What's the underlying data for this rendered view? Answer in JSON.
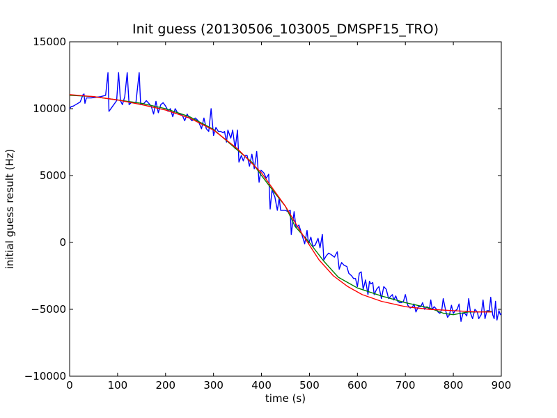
{
  "chart_data": {
    "type": "line",
    "title": "Init guess (20130506_103005_DMSPF15_TRO)",
    "xlabel": "time (s)",
    "ylabel": "initial guess result (Hz)",
    "xlim": [
      0,
      900
    ],
    "ylim": [
      -10000,
      15000
    ],
    "xticks": [
      0,
      100,
      200,
      300,
      400,
      500,
      600,
      700,
      800,
      900
    ],
    "yticks": [
      -10000,
      -5000,
      0,
      5000,
      10000,
      15000
    ],
    "grid": false,
    "series": [
      {
        "color": "#0000ff",
        "points": [
          [
            0,
            10000
          ],
          [
            3,
            10150
          ],
          [
            8,
            10200
          ],
          [
            15,
            10350
          ],
          [
            22,
            10500
          ],
          [
            28,
            11050
          ],
          [
            30,
            11100
          ],
          [
            32,
            10400
          ],
          [
            35,
            10800
          ],
          [
            45,
            10800
          ],
          [
            55,
            10850
          ],
          [
            65,
            10900
          ],
          [
            75,
            11000
          ],
          [
            80,
            12700
          ],
          [
            82,
            9800
          ],
          [
            90,
            10200
          ],
          [
            98,
            10600
          ],
          [
            102,
            12700
          ],
          [
            106,
            10600
          ],
          [
            110,
            10300
          ],
          [
            115,
            10900
          ],
          [
            120,
            12700
          ],
          [
            124,
            10300
          ],
          [
            130,
            10500
          ],
          [
            138,
            10400
          ],
          [
            145,
            12700
          ],
          [
            148,
            10300
          ],
          [
            155,
            10400
          ],
          [
            160,
            10600
          ],
          [
            165,
            10400
          ],
          [
            170,
            10200
          ],
          [
            175,
            9600
          ],
          [
            180,
            10550
          ],
          [
            185,
            9700
          ],
          [
            190,
            10300
          ],
          [
            195,
            10450
          ],
          [
            200,
            10200
          ],
          [
            203,
            10000
          ],
          [
            205,
            9800
          ],
          [
            210,
            10000
          ],
          [
            215,
            9400
          ],
          [
            220,
            10000
          ],
          [
            225,
            9700
          ],
          [
            230,
            9600
          ],
          [
            235,
            9500
          ],
          [
            240,
            9100
          ],
          [
            245,
            9600
          ],
          [
            248,
            9400
          ],
          [
            255,
            9100
          ],
          [
            262,
            9300
          ],
          [
            268,
            9100
          ],
          [
            275,
            8500
          ],
          [
            280,
            9300
          ],
          [
            285,
            8500
          ],
          [
            290,
            8300
          ],
          [
            295,
            10000
          ],
          [
            300,
            8000
          ],
          [
            305,
            8600
          ],
          [
            310,
            8300
          ],
          [
            315,
            8300
          ],
          [
            320,
            8200
          ],
          [
            323,
            8300
          ],
          [
            327,
            7500
          ],
          [
            330,
            8400
          ],
          [
            336,
            7800
          ],
          [
            340,
            8400
          ],
          [
            345,
            7000
          ],
          [
            350,
            8400
          ],
          [
            353,
            6000
          ],
          [
            358,
            6500
          ],
          [
            362,
            6100
          ],
          [
            366,
            6500
          ],
          [
            370,
            6500
          ],
          [
            375,
            5700
          ],
          [
            380,
            6600
          ],
          [
            385,
            5500
          ],
          [
            390,
            6800
          ],
          [
            395,
            4500
          ],
          [
            399,
            5400
          ],
          [
            405,
            5200
          ],
          [
            410,
            4800
          ],
          [
            415,
            5100
          ],
          [
            418,
            2500
          ],
          [
            422,
            3900
          ],
          [
            428,
            3400
          ],
          [
            433,
            2400
          ],
          [
            437,
            3300
          ],
          [
            440,
            2400
          ],
          [
            445,
            2400
          ],
          [
            450,
            2400
          ],
          [
            455,
            2300
          ],
          [
            460,
            2400
          ],
          [
            462,
            600
          ],
          [
            468,
            2300
          ],
          [
            472,
            1100
          ],
          [
            478,
            1300
          ],
          [
            485,
            500
          ],
          [
            490,
            -100
          ],
          [
            495,
            900
          ],
          [
            498,
            -100
          ],
          [
            503,
            400
          ],
          [
            507,
            -300
          ],
          [
            512,
            -200
          ],
          [
            518,
            300
          ],
          [
            522,
            -400
          ],
          [
            527,
            600
          ],
          [
            530,
            -1300
          ],
          [
            535,
            -1000
          ],
          [
            540,
            -800
          ],
          [
            545,
            -900
          ],
          [
            552,
            -1100
          ],
          [
            558,
            -700
          ],
          [
            562,
            -2000
          ],
          [
            567,
            -1500
          ],
          [
            572,
            -1700
          ],
          [
            578,
            -1800
          ],
          [
            582,
            -2300
          ],
          [
            588,
            -2500
          ],
          [
            592,
            -2700
          ],
          [
            596,
            -2700
          ],
          [
            600,
            -3300
          ],
          [
            604,
            -2300
          ],
          [
            608,
            -2200
          ],
          [
            612,
            -3500
          ],
          [
            617,
            -2800
          ],
          [
            622,
            -3900
          ],
          [
            625,
            -2900
          ],
          [
            628,
            -3100
          ],
          [
            632,
            -3000
          ],
          [
            635,
            -3900
          ],
          [
            640,
            -3500
          ],
          [
            645,
            -3300
          ],
          [
            650,
            -4200
          ],
          [
            655,
            -3300
          ],
          [
            660,
            -3500
          ],
          [
            665,
            -4200
          ],
          [
            670,
            -4000
          ],
          [
            673,
            -3900
          ],
          [
            676,
            -4300
          ],
          [
            680,
            -4000
          ],
          [
            684,
            -4400
          ],
          [
            688,
            -4500
          ],
          [
            692,
            -4500
          ],
          [
            696,
            -4400
          ],
          [
            700,
            -3900
          ],
          [
            705,
            -4700
          ],
          [
            710,
            -4900
          ],
          [
            715,
            -4800
          ],
          [
            718,
            -4600
          ],
          [
            722,
            -5200
          ],
          [
            727,
            -4800
          ],
          [
            732,
            -4800
          ],
          [
            736,
            -4500
          ],
          [
            740,
            -5000
          ],
          [
            745,
            -4800
          ],
          [
            750,
            -5000
          ],
          [
            753,
            -4300
          ],
          [
            756,
            -5000
          ],
          [
            760,
            -4800
          ],
          [
            765,
            -5000
          ],
          [
            768,
            -5200
          ],
          [
            772,
            -5300
          ],
          [
            776,
            -5000
          ],
          [
            779,
            -4200
          ],
          [
            784,
            -5100
          ],
          [
            788,
            -5600
          ],
          [
            792,
            -5400
          ],
          [
            796,
            -4700
          ],
          [
            800,
            -5300
          ],
          [
            804,
            -5100
          ],
          [
            808,
            -5000
          ],
          [
            812,
            -4600
          ],
          [
            816,
            -5900
          ],
          [
            820,
            -5300
          ],
          [
            824,
            -5300
          ],
          [
            828,
            -5500
          ],
          [
            832,
            -4200
          ],
          [
            836,
            -5300
          ],
          [
            840,
            -5700
          ],
          [
            845,
            -5000
          ],
          [
            850,
            -5200
          ],
          [
            853,
            -5700
          ],
          [
            858,
            -5400
          ],
          [
            862,
            -4300
          ],
          [
            866,
            -5700
          ],
          [
            870,
            -5100
          ],
          [
            875,
            -5100
          ],
          [
            878,
            -4100
          ],
          [
            882,
            -5400
          ],
          [
            885,
            -5700
          ],
          [
            888,
            -4400
          ],
          [
            891,
            -5800
          ],
          [
            895,
            -5100
          ],
          [
            898,
            -5400
          ],
          [
            900,
            -5300
          ]
        ]
      },
      {
        "color": "#008000",
        "points": [
          [
            0,
            11000
          ],
          [
            50,
            10900
          ],
          [
            100,
            10650
          ],
          [
            150,
            10400
          ],
          [
            200,
            10000
          ],
          [
            250,
            9400
          ],
          [
            300,
            8450
          ],
          [
            350,
            6900
          ],
          [
            380,
            6000
          ],
          [
            400,
            5000
          ],
          [
            430,
            3600
          ],
          [
            450,
            2700
          ],
          [
            470,
            1200
          ],
          [
            500,
            0
          ],
          [
            530,
            -1400
          ],
          [
            560,
            -2600
          ],
          [
            600,
            -3400
          ],
          [
            650,
            -4000
          ],
          [
            700,
            -4500
          ],
          [
            750,
            -4900
          ],
          [
            780,
            -5300
          ],
          [
            800,
            -5400
          ],
          [
            830,
            -5200
          ],
          [
            860,
            -5200
          ],
          [
            880,
            -5150
          ]
        ]
      },
      {
        "color": "#ff0000",
        "points": [
          [
            0,
            11050
          ],
          [
            50,
            10900
          ],
          [
            100,
            10650
          ],
          [
            150,
            10300
          ],
          [
            200,
            9900
          ],
          [
            250,
            9300
          ],
          [
            300,
            8400
          ],
          [
            350,
            7000
          ],
          [
            400,
            5200
          ],
          [
            450,
            2700
          ],
          [
            480,
            900
          ],
          [
            500,
            -200
          ],
          [
            520,
            -1300
          ],
          [
            550,
            -2500
          ],
          [
            580,
            -3300
          ],
          [
            610,
            -3900
          ],
          [
            650,
            -4400
          ],
          [
            700,
            -4800
          ],
          [
            750,
            -5000
          ],
          [
            800,
            -5100
          ],
          [
            850,
            -5200
          ],
          [
            880,
            -5200
          ]
        ]
      }
    ]
  }
}
